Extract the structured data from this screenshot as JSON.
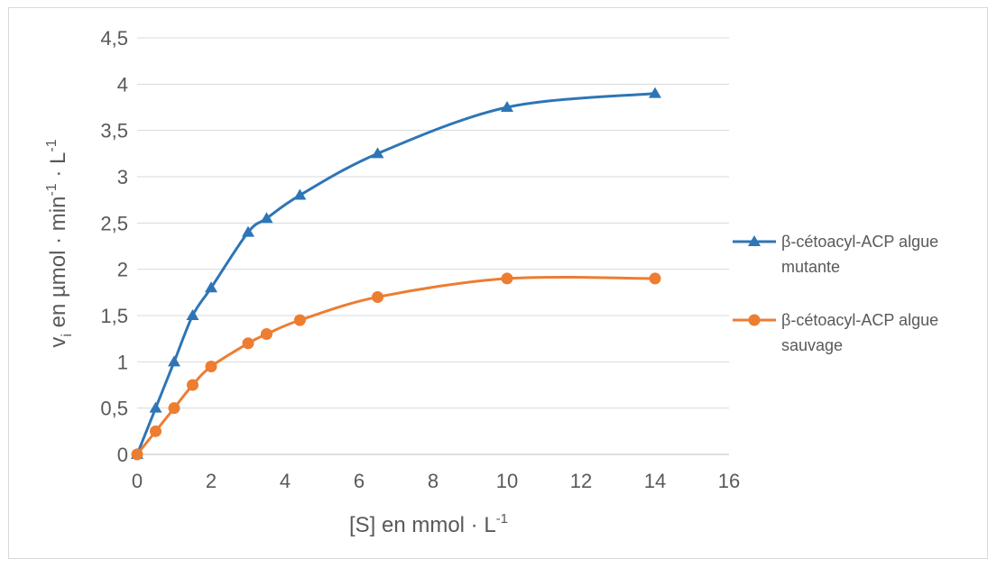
{
  "chart_data": {
    "type": "line",
    "title": "",
    "xlabel": {
      "main": "[S] en mmol · L",
      "sup": "-1"
    },
    "ylabel": {
      "v": "v",
      "sub": "i",
      "part1": " en µmol · min",
      "sup1": "-1",
      "part2": " · L",
      "sup2": "-1"
    },
    "xlim": [
      0,
      16
    ],
    "ylim": [
      0,
      4.5
    ],
    "x_ticks": [
      "0",
      "2",
      "4",
      "6",
      "8",
      "10",
      "12",
      "14",
      "16"
    ],
    "y_ticks": [
      "0",
      "0,5",
      "1",
      "1,5",
      "2",
      "2,5",
      "3",
      "3,5",
      "4",
      "4,5"
    ],
    "grid": "horizontal",
    "legend_position": "right",
    "series": [
      {
        "name_line1": "β-cétoacyl-ACP algue",
        "name_line2": "mutante",
        "color": "#2e75b6",
        "marker": "triangle",
        "x": [
          0,
          0.5,
          1,
          1.5,
          2,
          3,
          3.5,
          4.4,
          6.5,
          10,
          14
        ],
        "y": [
          0,
          0.5,
          1,
          1.5,
          1.8,
          2.4,
          2.55,
          2.8,
          3.25,
          3.75,
          3.9
        ]
      },
      {
        "name_line1": "β-cétoacyl-ACP algue",
        "name_line2": "sauvage",
        "color": "#ed7d31",
        "marker": "circle",
        "x": [
          0,
          0.5,
          1,
          1.5,
          2,
          3,
          3.5,
          4.4,
          6.5,
          10,
          14
        ],
        "y": [
          0,
          0.25,
          0.5,
          0.75,
          0.95,
          1.2,
          1.3,
          1.45,
          1.7,
          1.9,
          1.9
        ]
      }
    ]
  }
}
